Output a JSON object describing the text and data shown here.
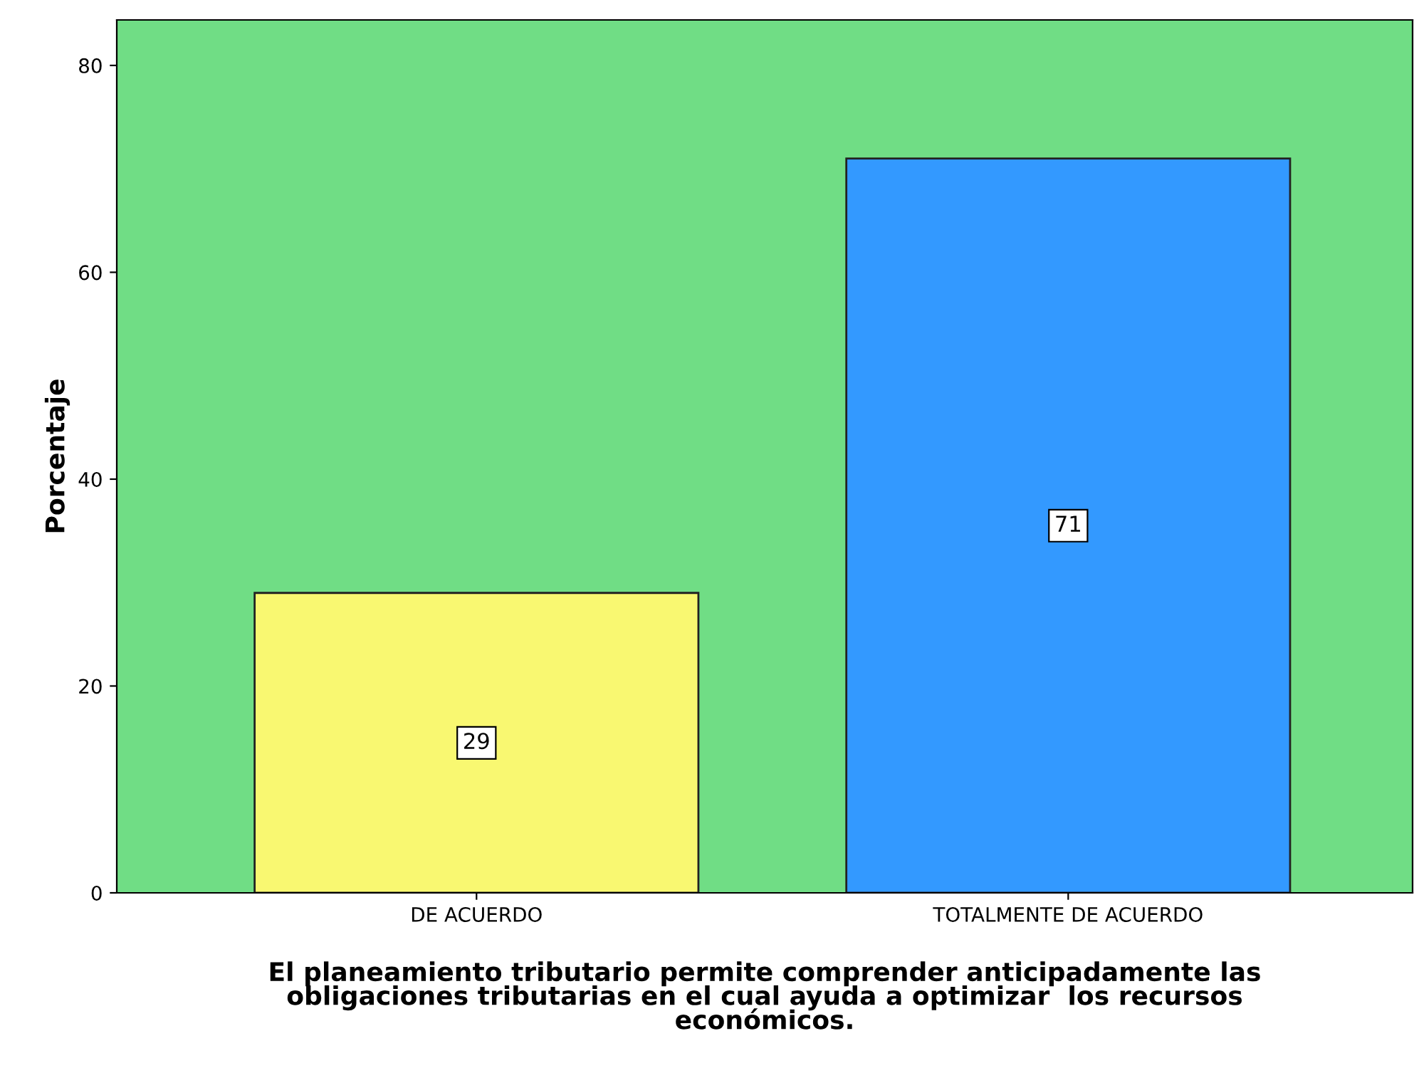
{
  "chart_data": {
    "type": "bar",
    "xlabel": "El planeamiento tributario permite comprender anticipadamente las\nobligaciones tributarias en el cual ayuda a optimizar  los recursos\neconómicos.",
    "ylabel": "Porcentaje",
    "categories": [
      "DE ACUERDO",
      "TOTALMENTE DE ACUERDO"
    ],
    "values": [
      29,
      71
    ],
    "colors": [
      "#f9f871",
      "#3399ff"
    ],
    "ylim": [
      0,
      84.4
    ],
    "yticks": [
      0,
      20,
      40,
      60,
      80
    ],
    "grid": false,
    "data_labels": true
  }
}
